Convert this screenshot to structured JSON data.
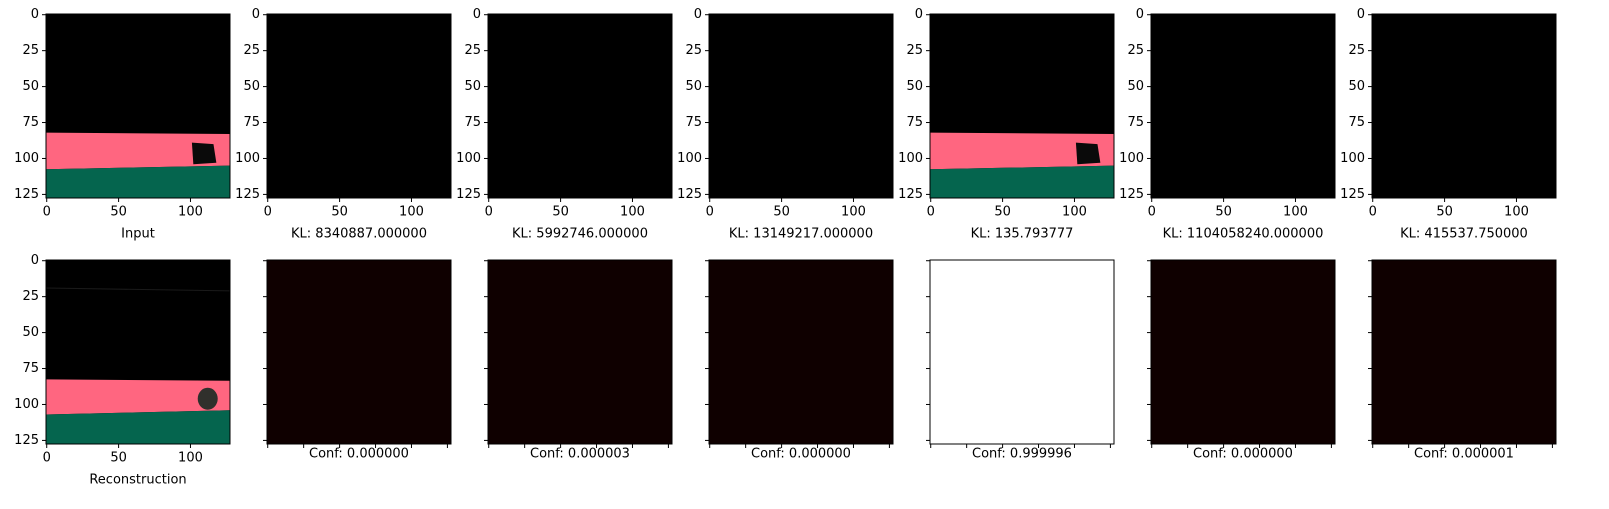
{
  "chart_data": [
    {
      "type": "image",
      "xlabel": "Input",
      "xlim": [
        -0.5,
        127.5
      ],
      "ylim": [
        127.5,
        -0.5
      ],
      "xticks": [
        0,
        50,
        100
      ],
      "yticks": [
        0,
        25,
        50,
        75,
        100,
        125
      ],
      "tick_labels": true
    },
    {
      "type": "image",
      "xlabel": "KL: 8340887.000000",
      "xlim": [
        -0.5,
        127.5
      ],
      "ylim": [
        127.5,
        -0.5
      ],
      "xticks": [
        0,
        50,
        100
      ],
      "yticks": [
        0,
        25,
        50,
        75,
        100,
        125
      ],
      "tick_labels": true,
      "fill": "#000000"
    },
    {
      "type": "image",
      "xlabel": "KL: 5992746.000000",
      "xlim": [
        -0.5,
        127.5
      ],
      "ylim": [
        127.5,
        -0.5
      ],
      "xticks": [
        0,
        50,
        100
      ],
      "yticks": [
        0,
        25,
        50,
        75,
        100,
        125
      ],
      "tick_labels": true,
      "fill": "#000000"
    },
    {
      "type": "image",
      "xlabel": "KL: 13149217.000000",
      "xlim": [
        -0.5,
        127.5
      ],
      "ylim": [
        127.5,
        -0.5
      ],
      "xticks": [
        0,
        50,
        100
      ],
      "yticks": [
        0,
        25,
        50,
        75,
        100,
        125
      ],
      "tick_labels": true,
      "fill": "#000000"
    },
    {
      "type": "image",
      "xlabel": "KL: 135.793777",
      "xlim": [
        -0.5,
        127.5
      ],
      "ylim": [
        127.5,
        -0.5
      ],
      "xticks": [
        0,
        50,
        100
      ],
      "yticks": [
        0,
        25,
        50,
        75,
        100,
        125
      ],
      "tick_labels": true
    },
    {
      "type": "image",
      "xlabel": "KL: 1104058240.000000",
      "xlim": [
        -0.5,
        127.5
      ],
      "ylim": [
        127.5,
        -0.5
      ],
      "xticks": [
        0,
        50,
        100
      ],
      "yticks": [
        0,
        25,
        50,
        75,
        100,
        125
      ],
      "tick_labels": true,
      "fill": "#000000"
    },
    {
      "type": "image",
      "xlabel": "KL: 415537.750000",
      "xlim": [
        -0.5,
        127.5
      ],
      "ylim": [
        127.5,
        -0.5
      ],
      "xticks": [
        0,
        50,
        100
      ],
      "yticks": [
        0,
        25,
        50,
        75,
        100,
        125
      ],
      "tick_labels": true,
      "fill": "#000000"
    },
    {
      "type": "image",
      "xlabel": "Reconstruction",
      "xlim": [
        -0.5,
        127.5
      ],
      "ylim": [
        127.5,
        -0.5
      ],
      "xticks": [
        0,
        50,
        100
      ],
      "yticks": [
        0,
        25,
        50,
        75,
        100,
        125
      ],
      "tick_labels": true
    },
    {
      "type": "image",
      "xlabel": "Conf: 0.000000",
      "xlim": [
        -0.5,
        127.5
      ],
      "ylim": [
        127.5,
        -0.5
      ],
      "xticks": [
        0,
        25,
        50,
        75,
        100,
        125
      ],
      "yticks": [
        0,
        25,
        50,
        75,
        100,
        125
      ],
      "tick_labels": false,
      "fill": "#0f0000"
    },
    {
      "type": "image",
      "xlabel": "Conf: 0.000003",
      "xlim": [
        -0.5,
        127.5
      ],
      "ylim": [
        127.5,
        -0.5
      ],
      "xticks": [
        0,
        25,
        50,
        75,
        100,
        125
      ],
      "yticks": [
        0,
        25,
        50,
        75,
        100,
        125
      ],
      "tick_labels": false,
      "fill": "#0f0000"
    },
    {
      "type": "image",
      "xlabel": "Conf: 0.000000",
      "xlim": [
        -0.5,
        127.5
      ],
      "ylim": [
        127.5,
        -0.5
      ],
      "xticks": [
        0,
        25,
        50,
        75,
        100,
        125
      ],
      "yticks": [
        0,
        25,
        50,
        75,
        100,
        125
      ],
      "tick_labels": false,
      "fill": "#0f0000"
    },
    {
      "type": "image",
      "xlabel": "Conf: 0.999996",
      "xlim": [
        -0.5,
        127.5
      ],
      "ylim": [
        127.5,
        -0.5
      ],
      "xticks": [
        0,
        25,
        50,
        75,
        100,
        125
      ],
      "yticks": [
        0,
        25,
        50,
        75,
        100,
        125
      ],
      "tick_labels": false,
      "fill": "#ffffff"
    },
    {
      "type": "image",
      "xlabel": "Conf: 0.000000",
      "xlim": [
        -0.5,
        127.5
      ],
      "ylim": [
        127.5,
        -0.5
      ],
      "xticks": [
        0,
        25,
        50,
        75,
        100,
        125
      ],
      "yticks": [
        0,
        25,
        50,
        75,
        100,
        125
      ],
      "tick_labels": false,
      "fill": "#0f0000"
    },
    {
      "type": "image",
      "xlabel": "Conf: 0.000001",
      "xlim": [
        -0.5,
        127.5
      ],
      "ylim": [
        127.5,
        -0.5
      ],
      "xticks": [
        0,
        25,
        50,
        75,
        100,
        125
      ],
      "yticks": [
        0,
        25,
        50,
        75,
        100,
        125
      ],
      "tick_labels": false,
      "fill": "#0f0000"
    }
  ]
}
